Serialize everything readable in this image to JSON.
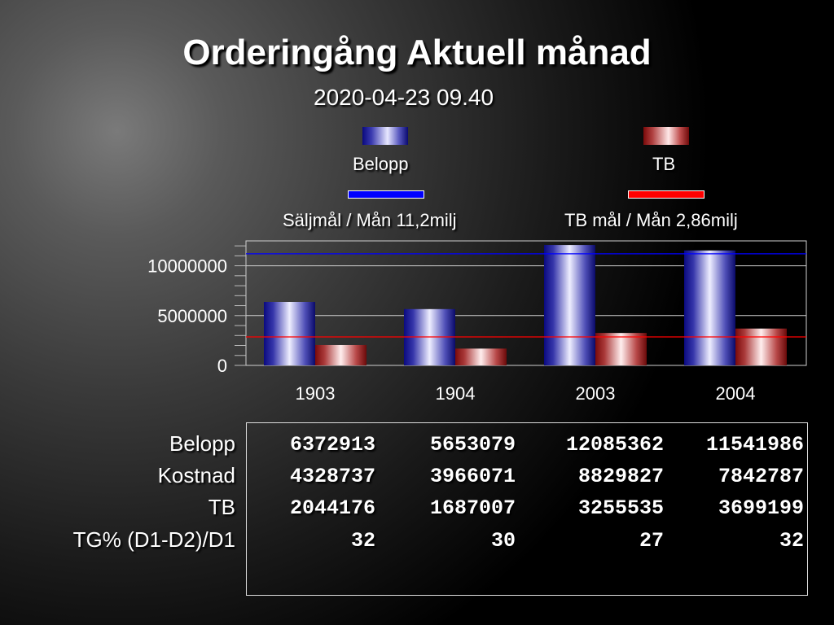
{
  "header": {
    "title": "Orderingång Aktuell månad",
    "timestamp": "2020-04-23 09.40"
  },
  "legend": {
    "belopp_label": "Belopp",
    "tb_label": "TB",
    "saljmal_label": "Säljmål / Mån 11,2milj",
    "tbmal_label": "TB mål / Mån 2,86milj"
  },
  "colors": {
    "belopp": "#1a1aa0",
    "tb": "#a01a1a",
    "saljmal_line": "#0000ff",
    "tbmal_line": "#ff0000"
  },
  "chart_data": {
    "type": "bar",
    "categories": [
      "1903",
      "1904",
      "2003",
      "2004"
    ],
    "series": [
      {
        "name": "Belopp",
        "values": [
          6372913,
          5653079,
          12085362,
          11541986
        ]
      },
      {
        "name": "TB",
        "values": [
          2044176,
          1687007,
          3255535,
          3699199
        ]
      }
    ],
    "reference_lines": [
      {
        "name": "Säljmål / Mån 11,2milj",
        "value": 11200000
      },
      {
        "name": "TB mål / Mån 2,86milj",
        "value": 2860000
      }
    ],
    "yticks": [
      "0",
      "5000000",
      "10000000"
    ],
    "ytick_values": [
      0,
      5000000,
      10000000
    ],
    "ylim": [
      0,
      12500000
    ],
    "grid": true,
    "legend_position": "top"
  },
  "table": {
    "row_labels": [
      "Belopp",
      "Kostnad",
      "TB",
      "TG% (D1-D2)/D1"
    ],
    "rows": [
      [
        "6372913",
        "5653079",
        "12085362",
        "11541986"
      ],
      [
        "4328737",
        "3966071",
        "8829827",
        "7842787"
      ],
      [
        "2044176",
        "1687007",
        "3255535",
        "3699199"
      ],
      [
        "32",
        "30",
        "27",
        "32"
      ]
    ]
  }
}
